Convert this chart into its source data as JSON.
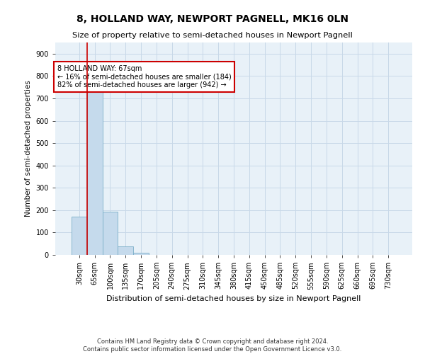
{
  "title": "8, HOLLAND WAY, NEWPORT PAGNELL, MK16 0LN",
  "subtitle": "Size of property relative to semi-detached houses in Newport Pagnell",
  "xlabel": "Distribution of semi-detached houses by size in Newport Pagnell",
  "ylabel": "Number of semi-detached properties",
  "bar_labels": [
    "30sqm",
    "65sqm",
    "100sqm",
    "135sqm",
    "170sqm",
    "205sqm",
    "240sqm",
    "275sqm",
    "310sqm",
    "345sqm",
    "380sqm",
    "415sqm",
    "450sqm",
    "485sqm",
    "520sqm",
    "555sqm",
    "590sqm",
    "625sqm",
    "660sqm",
    "695sqm",
    "730sqm"
  ],
  "bar_values": [
    170,
    742,
    194,
    37,
    10,
    0,
    0,
    0,
    0,
    0,
    0,
    0,
    0,
    0,
    0,
    0,
    0,
    0,
    0,
    0,
    0
  ],
  "bar_color": "#c5daec",
  "bar_edge_color": "#7aafc8",
  "grid_color": "#c8d8e8",
  "background_color": "#e8f1f8",
  "vline_color": "#cc0000",
  "annotation_text": "8 HOLLAND WAY: 67sqm\n← 16% of semi-detached houses are smaller (184)\n82% of semi-detached houses are larger (942) →",
  "annotation_box_color": "#ffffff",
  "annotation_box_edge": "#cc0000",
  "ylim": [
    0,
    950
  ],
  "yticks": [
    0,
    100,
    200,
    300,
    400,
    500,
    600,
    700,
    800,
    900
  ],
  "footer_line1": "Contains HM Land Registry data © Crown copyright and database right 2024.",
  "footer_line2": "Contains public sector information licensed under the Open Government Licence v3.0."
}
